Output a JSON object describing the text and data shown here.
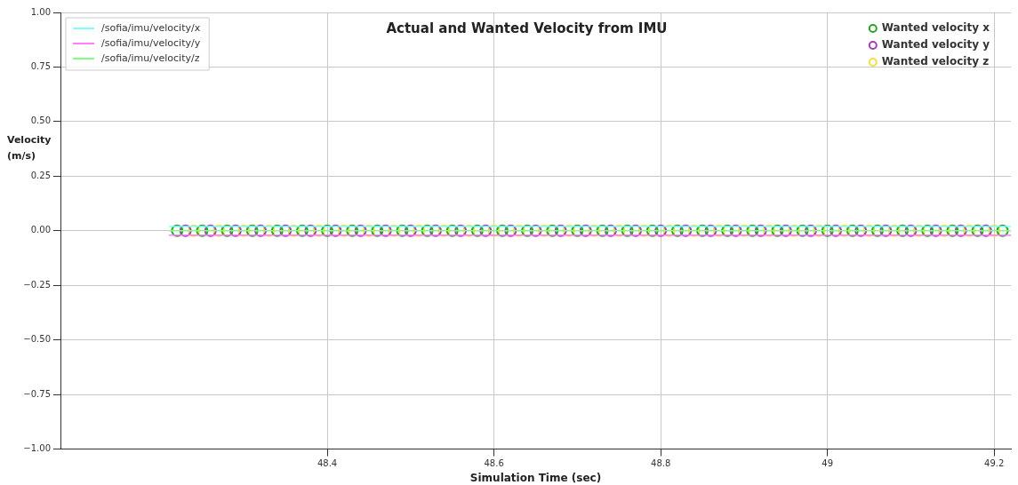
{
  "chart_data": {
    "type": "line",
    "title": "Actual and Wanted Velocity from IMU",
    "xlabel": "Simulation Time (sec)",
    "ylabel": "Velocity (m/s)",
    "xlim": [
      48.08,
      49.22
    ],
    "xticks": [
      48.4,
      48.6,
      48.8,
      49.0,
      49.2
    ],
    "ylim": [
      -1,
      1
    ],
    "yticks": [
      {
        "value": -1,
        "label": "−1.00"
      },
      {
        "value": -0.75,
        "label": "−0.75"
      },
      {
        "value": -0.5,
        "label": "−0.50"
      },
      {
        "value": -0.25,
        "label": "−0.25"
      },
      {
        "value": 0,
        "label": "0.00"
      },
      {
        "value": 0.25,
        "label": "0.25"
      },
      {
        "value": 0.5,
        "label": "0.50"
      },
      {
        "value": 0.75,
        "label": "0.75"
      },
      {
        "value": 1,
        "label": "1.00"
      }
    ],
    "grid": true,
    "legend": "top left",
    "series": [
      {
        "name": "/sofia/imu/velocity/x",
        "color": "#80ffff",
        "x": [
          48.21,
          49.22
        ],
        "values": [
          0.02,
          0.02
        ]
      },
      {
        "name": "/sofia/imu/velocity/y",
        "color": "#ff80ff",
        "x": [
          48.21,
          49.22
        ],
        "values": [
          -0.02,
          -0.02
        ]
      },
      {
        "name": "/sofia/imu/velocity/z",
        "color": "#80ff80",
        "x": [
          48.21,
          49.22
        ],
        "values": [
          0,
          0
        ]
      },
      {
        "name": "Wanted velocity x",
        "type": "scatter",
        "marker": "circle",
        "color": "#2ca02c",
        "x": [
          48.22,
          48.25,
          48.28,
          48.31,
          48.34,
          48.37,
          48.4,
          48.43,
          48.46,
          48.49,
          48.52,
          48.55,
          48.58,
          48.61,
          48.64,
          48.67,
          48.7,
          48.73,
          48.76,
          48.79,
          48.82,
          48.85,
          48.88,
          48.91,
          48.94,
          48.97,
          49.0,
          49.03,
          49.06,
          49.09,
          49.12,
          49.15,
          49.18,
          49.21
        ],
        "values": [
          0,
          0,
          0,
          0,
          0,
          0,
          0,
          0,
          0,
          0,
          0,
          0,
          0,
          0,
          0,
          0,
          0,
          0,
          0,
          0,
          0,
          0,
          0,
          0,
          0,
          0,
          0,
          0,
          0,
          0,
          0,
          0,
          0,
          0
        ]
      },
      {
        "name": "Wanted velocity y",
        "type": "scatter",
        "marker": "circle",
        "color": "#a040b0",
        "x": [
          48.23,
          48.26,
          48.29,
          48.32,
          48.35,
          48.38,
          48.41,
          48.44,
          48.47,
          48.5,
          48.53,
          48.56,
          48.59,
          48.62,
          48.65,
          48.68,
          48.71,
          48.74,
          48.77,
          48.8,
          48.83,
          48.86,
          48.89,
          48.92,
          48.95,
          48.98,
          49.01,
          49.04,
          49.07,
          49.1,
          49.13,
          49.16,
          49.19
        ],
        "values": [
          0,
          0,
          0,
          0,
          0,
          0,
          0,
          0,
          0,
          0,
          0,
          0,
          0,
          0,
          0,
          0,
          0,
          0,
          0,
          0,
          0,
          0,
          0,
          0,
          0,
          0,
          0,
          0,
          0,
          0,
          0,
          0,
          0
        ]
      },
      {
        "name": "Wanted velocity z",
        "type": "scatter",
        "marker": "circle",
        "color": "#f0e040",
        "x": [
          48.24,
          48.27,
          48.3,
          48.33,
          48.36,
          48.39,
          48.42,
          48.45,
          48.48,
          48.51,
          48.54,
          48.57,
          48.6,
          48.63,
          48.66,
          48.69,
          48.72,
          48.75,
          48.78,
          48.81,
          48.84,
          48.87,
          48.9,
          48.93,
          48.96,
          48.99,
          49.02,
          49.05,
          49.08,
          49.11,
          49.14,
          49.17,
          49.2
        ],
        "values": [
          0,
          0,
          0,
          0,
          0,
          0,
          0,
          0,
          0,
          0,
          0,
          0,
          0,
          0,
          0,
          0,
          0,
          0,
          0,
          0,
          0,
          0,
          0,
          0,
          0,
          0,
          0,
          0,
          0,
          0,
          0,
          0,
          0
        ]
      }
    ]
  }
}
